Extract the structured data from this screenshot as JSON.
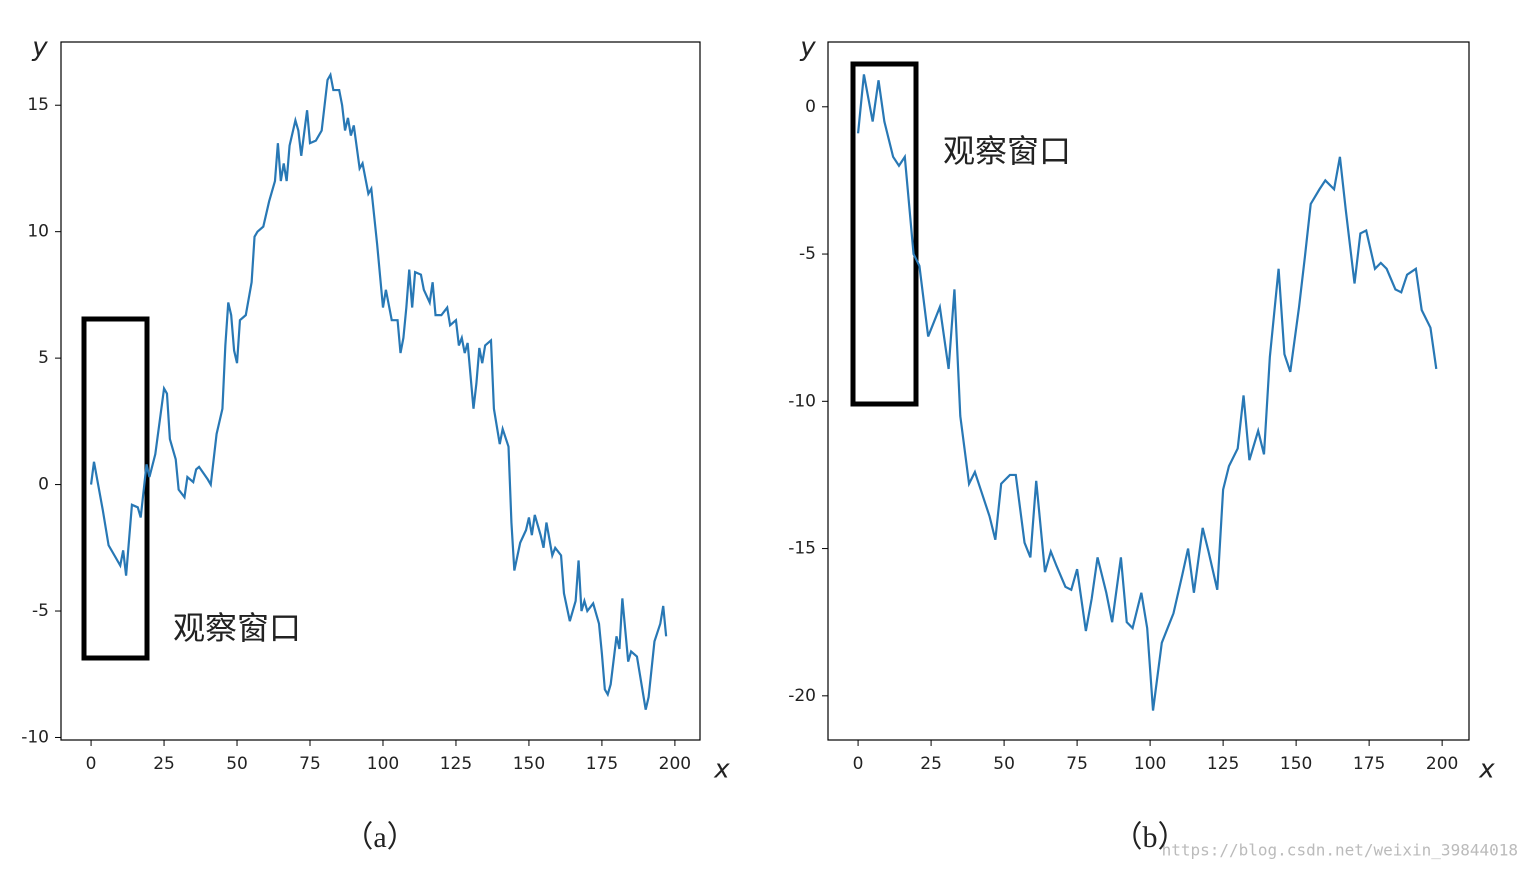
{
  "chart_data": [
    {
      "type": "line",
      "caption": "（a）",
      "x_label": "x",
      "y_label": "y",
      "annotation": "观察窗口",
      "xlim": [
        -10.3,
        208.6
      ],
      "ylim": [
        -10.1,
        17.5
      ],
      "xticks": [
        0,
        25,
        50,
        75,
        100,
        125,
        150,
        175,
        200
      ],
      "yticks": [
        -10,
        -5,
        0,
        5,
        10,
        15
      ],
      "color": "#2878b5",
      "x": [
        0,
        1,
        4,
        6,
        8,
        10,
        11,
        12,
        14,
        16,
        17,
        19,
        20,
        22,
        25,
        26,
        27,
        29,
        30,
        32,
        33,
        35,
        36,
        37,
        40,
        41,
        42,
        43,
        45,
        46,
        47,
        48,
        49,
        50,
        51,
        53,
        55,
        56,
        57,
        59,
        61,
        63,
        64,
        65,
        66,
        67,
        68,
        70,
        71,
        72,
        74,
        75,
        77,
        79,
        81,
        82,
        83,
        85,
        86,
        87,
        88,
        89,
        90,
        92,
        93,
        95,
        96,
        98,
        100,
        101,
        103,
        105,
        106,
        107,
        108,
        109,
        110,
        111,
        113,
        114,
        116,
        117,
        118,
        120,
        122,
        123,
        125,
        126,
        127,
        128,
        129,
        131,
        132,
        133,
        134,
        135,
        137,
        138,
        140,
        141,
        143,
        144,
        145,
        147,
        149,
        150,
        151,
        152,
        154,
        155,
        156,
        158,
        159,
        161,
        162,
        164,
        166,
        167,
        168,
        169,
        170,
        172,
        174,
        175,
        176,
        177,
        178,
        180,
        181,
        182,
        184,
        185,
        187,
        190,
        191,
        193,
        195,
        196,
        197
      ],
      "values": [
        0,
        0.9,
        -1,
        -2.4,
        -2.8,
        -3.2,
        -2.6,
        -3.6,
        -0.8,
        -0.9,
        -1.3,
        0.8,
        0.3,
        1.2,
        3.8,
        3.6,
        1.8,
        1.0,
        -0.2,
        -0.5,
        0.3,
        0.1,
        0.6,
        0.7,
        0.2,
        0,
        1.0,
        2.0,
        3.0,
        5.5,
        7.2,
        6.7,
        5.3,
        4.8,
        6.5,
        6.7,
        8.0,
        9.8,
        10.0,
        10.2,
        11.2,
        12.0,
        13.5,
        12.0,
        12.7,
        12.0,
        13.4,
        14.4,
        14.0,
        13.0,
        14.8,
        13.5,
        13.6,
        14.0,
        16.0,
        16.2,
        15.6,
        15.6,
        15.0,
        14.0,
        14.5,
        13.8,
        14.2,
        12.5,
        12.7,
        11.5,
        11.7,
        9.5,
        7.0,
        7.7,
        6.5,
        6.5,
        5.2,
        5.8,
        7.0,
        8.5,
        7.0,
        8.4,
        8.3,
        7.7,
        7.2,
        8.0,
        6.7,
        6.7,
        7.0,
        6.3,
        6.5,
        5.5,
        5.8,
        5.2,
        5.6,
        3.0,
        4.0,
        5.4,
        4.8,
        5.5,
        5.7,
        3.0,
        1.6,
        2.2,
        1.5,
        -1.5,
        -3.4,
        -2.3,
        -1.8,
        -1.3,
        -2.0,
        -1.2,
        -2.0,
        -2.5,
        -1.5,
        -2.8,
        -2.5,
        -2.8,
        -4.3,
        -5.4,
        -4.6,
        -3.0,
        -5.0,
        -4.6,
        -5.0,
        -4.7,
        -5.5,
        -6.7,
        -8.1,
        -8.3,
        -7.9,
        -6.0,
        -6.5,
        -4.5,
        -7.0,
        -6.6,
        -6.8,
        -8.9,
        -8.4,
        -6.2,
        -5.5,
        -4.8,
        -6.0
      ]
    },
    {
      "type": "line",
      "caption": "（b）",
      "x_label": "x",
      "y_label": "y",
      "annotation": "观察窗口",
      "xlim": [
        -10.3,
        209.2
      ],
      "ylim": [
        -21.5,
        2.2
      ],
      "xticks": [
        0,
        25,
        50,
        75,
        100,
        125,
        150,
        175,
        200
      ],
      "yticks": [
        -20,
        -15,
        -10,
        -5,
        0
      ],
      "color": "#2878b5",
      "x": [
        0,
        2,
        5,
        7,
        9,
        12,
        14,
        16,
        19,
        21,
        24,
        26,
        28,
        31,
        33,
        35,
        38,
        40,
        42,
        45,
        47,
        49,
        52,
        54,
        57,
        59,
        61,
        64,
        66,
        68,
        71,
        73,
        75,
        78,
        80,
        82,
        85,
        87,
        90,
        92,
        94,
        97,
        99,
        101,
        104,
        106,
        108,
        111,
        113,
        115,
        118,
        120,
        123,
        125,
        127,
        130,
        132,
        134,
        137,
        139,
        141,
        144,
        146,
        148,
        151,
        153,
        155,
        158,
        160,
        163,
        165,
        167,
        170,
        172,
        174,
        177,
        179,
        181,
        184,
        186,
        188,
        191,
        193,
        196,
        198
      ],
      "values": [
        -0.9,
        1.1,
        -0.5,
        0.9,
        -0.5,
        -1.7,
        -2.0,
        -1.7,
        -5.0,
        -5.4,
        -7.8,
        -7.3,
        -6.8,
        -8.9,
        -6.2,
        -10.5,
        -12.8,
        -12.4,
        -13.0,
        -13.9,
        -14.7,
        -12.8,
        -12.5,
        -12.5,
        -14.8,
        -15.3,
        -12.7,
        -15.8,
        -15.1,
        -15.6,
        -16.3,
        -16.4,
        -15.7,
        -17.8,
        -16.7,
        -15.3,
        -16.5,
        -17.5,
        -15.3,
        -17.5,
        -17.7,
        -16.5,
        -17.7,
        -20.5,
        -18.2,
        -17.7,
        -17.2,
        -15.9,
        -15.0,
        -16.5,
        -14.3,
        -15.1,
        -16.4,
        -13.0,
        -12.2,
        -11.6,
        -9.8,
        -12.0,
        -11.0,
        -11.8,
        -8.5,
        -5.5,
        -8.4,
        -9.0,
        -6.8,
        -5.1,
        -3.3,
        -2.8,
        -2.5,
        -2.8,
        -1.7,
        -3.5,
        -6.0,
        -4.3,
        -4.2,
        -5.5,
        -5.3,
        -5.5,
        -6.2,
        -6.3,
        -5.7,
        -5.5,
        -6.9,
        -7.5,
        -8.9
      ]
    }
  ],
  "watermark": "https://blog.csdn.net/weixin_39844018"
}
